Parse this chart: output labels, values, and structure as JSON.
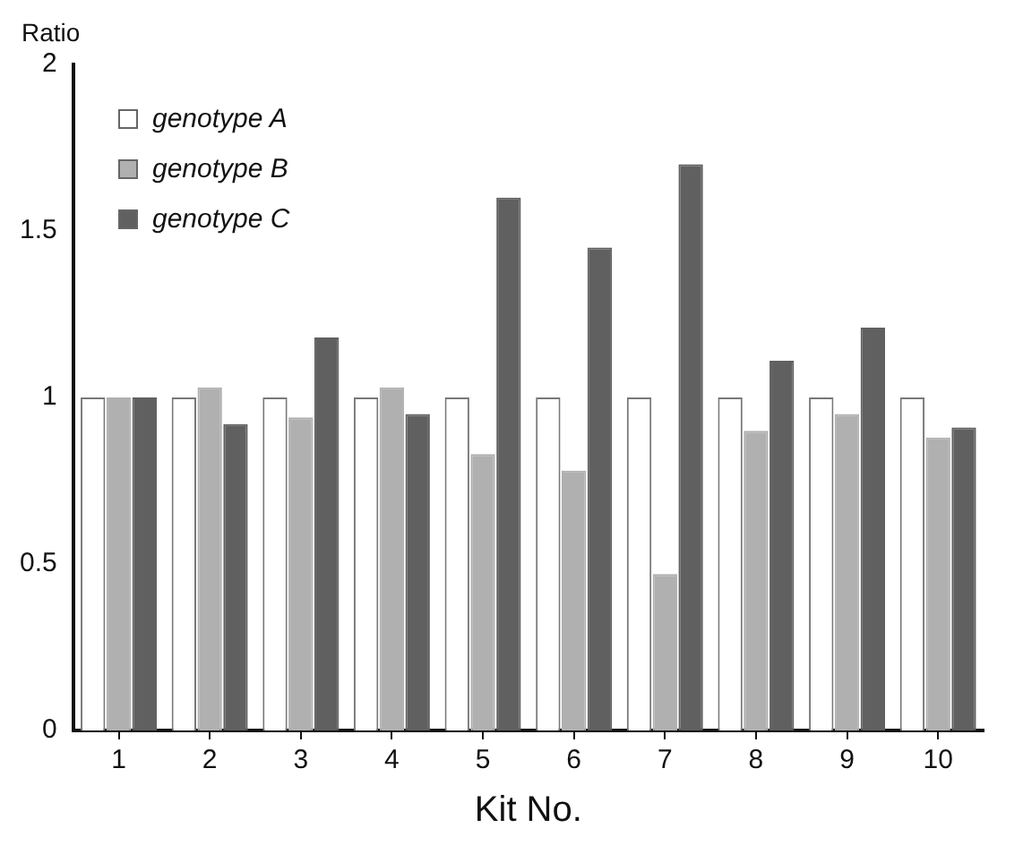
{
  "chart_data": {
    "type": "bar",
    "ylabel": "Ratio",
    "xlabel": "Kit No.",
    "categories": [
      "1",
      "2",
      "3",
      "4",
      "5",
      "6",
      "7",
      "8",
      "9",
      "10"
    ],
    "series": [
      {
        "name": "genotype A",
        "color": "#ffffff",
        "values": [
          1,
          1,
          1,
          1,
          1,
          1,
          1,
          1,
          1,
          1
        ]
      },
      {
        "name": "genotype B",
        "color": "#b0b0b0",
        "values": [
          1,
          1.03,
          0.94,
          1.03,
          0.83,
          0.78,
          0.47,
          0.9,
          0.95,
          0.88
        ]
      },
      {
        "name": "genotype C",
        "color": "#606060",
        "values": [
          1,
          0.92,
          1.18,
          0.95,
          1.6,
          1.45,
          1.7,
          1.11,
          1.21,
          0.91
        ]
      }
    ],
    "ylim": [
      0,
      2
    ],
    "yticks": [
      0,
      0.5,
      1,
      1.5,
      2
    ],
    "grid": false,
    "legend": "top left"
  }
}
